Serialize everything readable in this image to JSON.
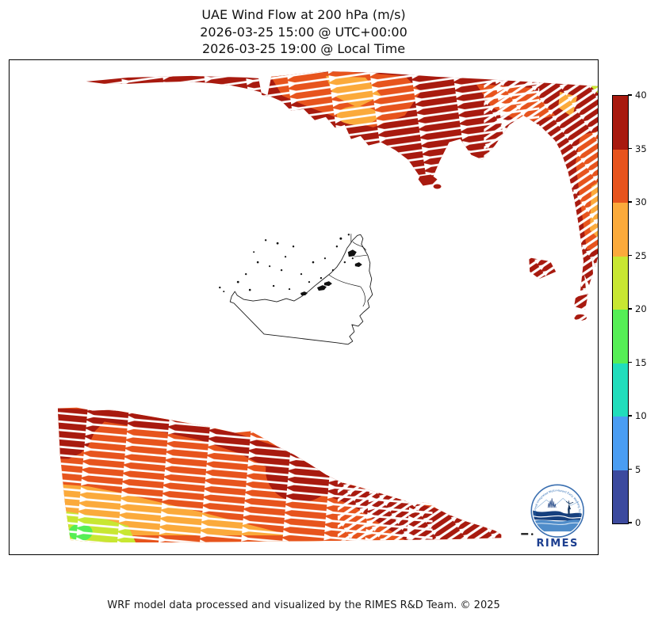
{
  "title": {
    "line1": "UAE Wind Flow at 200 hPa (m/s)",
    "line2": "2026-03-25 15:00 @ UTC+00:00",
    "line3": "2026-03-25 19:00 @ Local Time"
  },
  "footer": "WRF model data processed and visualized by the RIMES R&D Team. © 2025",
  "logo": {
    "name": "RIMES",
    "tagline": "Regional Integrated Multi-Hazard Early Warning System"
  },
  "colorbar": {
    "ticks": [
      0,
      5,
      10,
      15,
      20,
      25,
      30,
      35,
      40
    ],
    "colors": [
      "#3c4a9e",
      "#4a9df3",
      "#21ddbc",
      "#55ee55",
      "#c8e732",
      "#fbaa3b",
      "#e7541d",
      "#a81a0f"
    ]
  },
  "chart_data": {
    "type": "heatmap",
    "subtype": "wind-flow-map-with-streamlines",
    "title": "UAE Wind Flow at 200 hPa (m/s)",
    "time_utc": "2026-03-25 15:00 @ UTC+00:00",
    "time_local": "2026-03-25 19:00 @ Local Time",
    "variable": "wind speed",
    "unit": "m/s",
    "colormap_levels": [
      0,
      5,
      10,
      15,
      20,
      25,
      30,
      35,
      40
    ],
    "colormap_colors": [
      "#3c4a9e",
      "#4a9df3",
      "#21ddbc",
      "#55ee55",
      "#c8e732",
      "#fbaa3b",
      "#e7541d",
      "#a81a0f"
    ],
    "legend_position": "right vertical colorbar",
    "flow_direction": "west-to-east (white streamline arrows pointing right)",
    "regions": [
      {
        "name": "northern band (Iran coast, top of map)",
        "wind_speed_ms": "mostly 35-40 with 25-35 patches",
        "dominant_color": "#a81a0f"
      },
      {
        "name": "eastern edge band (right side)",
        "wind_speed_ms": "30-40",
        "dominant_color": "#a81a0f"
      },
      {
        "name": "southern band (Saudi/Oman, bottom left)",
        "wind_speed_ms": "15-40, decreasing toward southwest corner",
        "dominant_color": "#e7541d"
      },
      {
        "name": "central area around UAE and Gulf",
        "wind_speed_ms": "unshaded (masked / below plotted range)",
        "dominant_color": "#ffffff"
      }
    ],
    "basemap": "UAE administrative boundary outline with small islands (thin black lines)"
  }
}
